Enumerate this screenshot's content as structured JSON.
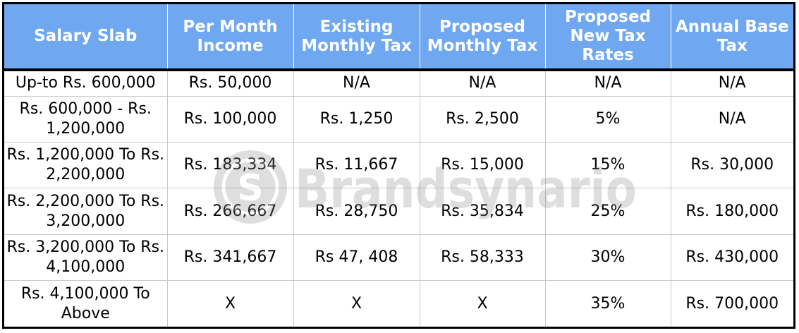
{
  "table": {
    "headers": [
      "Salary Slab",
      "Per Month Income",
      "Existing Monthly Tax",
      "Proposed Monthly Tax",
      "Proposed New Tax Rates",
      "Annual Base Tax"
    ],
    "rows": [
      [
        "Up-to Rs. 600,000",
        "Rs. 50,000",
        "N/A",
        "N/A",
        "N/A",
        "N/A"
      ],
      [
        "Rs. 600,000 - Rs. 1,200,000",
        "Rs. 100,000",
        "Rs. 1,250",
        "Rs. 2,500",
        "5%",
        "N/A"
      ],
      [
        "Rs. 1,200,000 To Rs. 2,200,000",
        "Rs. 183,334",
        "Rs. 11,667",
        "Rs. 15,000",
        "15%",
        "Rs. 30,000"
      ],
      [
        "Rs. 2,200,000 To Rs. 3,200,000",
        "Rs. 266,667",
        "Rs. 28,750",
        "Rs. 35,834",
        "25%",
        "Rs. 180,000"
      ],
      [
        "Rs. 3,200,000 To Rs. 4,100,000",
        "Rs. 341,667",
        "Rs 47, 408",
        "Rs. 58,333",
        "30%",
        "Rs. 430,000"
      ],
      [
        "Rs. 4,100,000 To Above",
        "X",
        "X",
        "X",
        "35%",
        "Rs. 700,000"
      ]
    ]
  },
  "watermark": {
    "text": "Brandsynario",
    "logo_letter": "S"
  },
  "colors": {
    "header_background": "#6fa8f0",
    "header_text": "#ffffff",
    "body_text": "#000000",
    "grid_line": "#c8c8c8",
    "outer_border": "#000000"
  }
}
